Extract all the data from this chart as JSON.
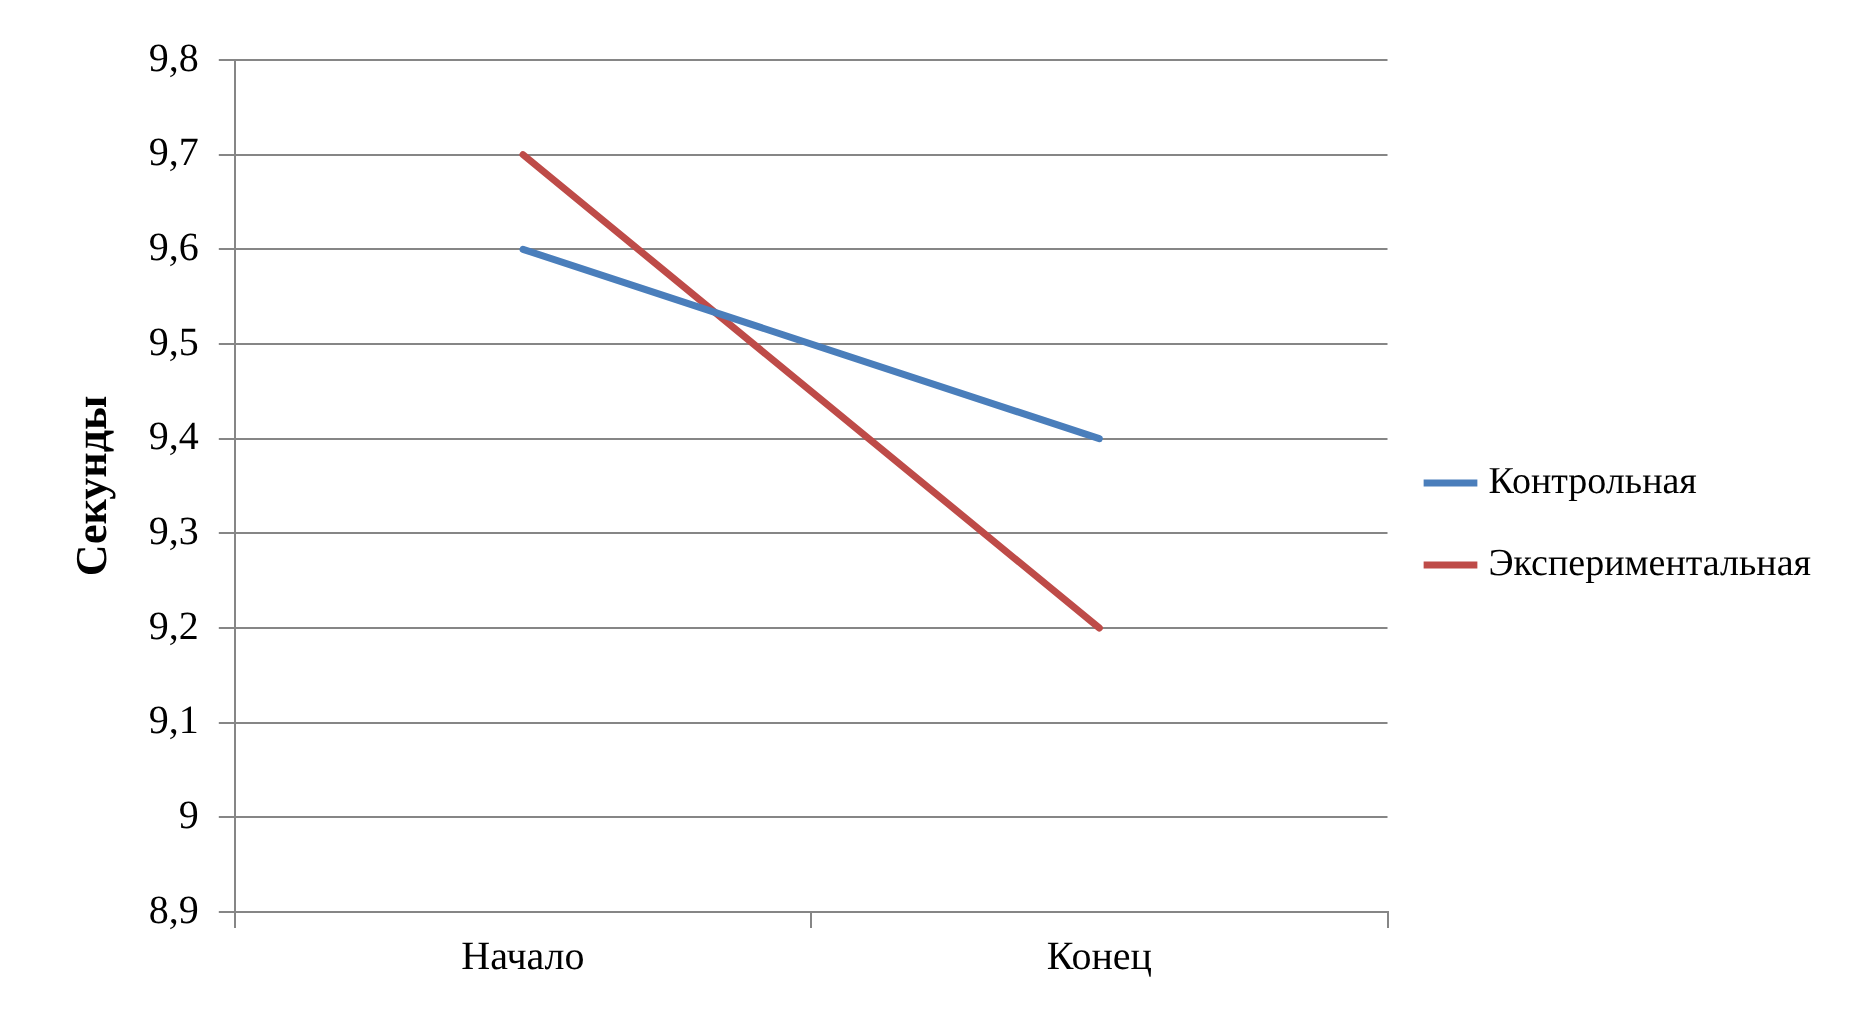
{
  "chart_data": {
    "type": "line",
    "ylabel": "Секунды",
    "categories": [
      "Начало",
      "Конец"
    ],
    "series": [
      {
        "name": "Контрольная",
        "color": "#4a7ebb",
        "values": [
          9.6,
          9.4
        ]
      },
      {
        "name": "Экспериментальная",
        "color": "#be4b48",
        "values": [
          9.7,
          9.2
        ]
      }
    ],
    "ylim": [
      8.9,
      9.8
    ],
    "yticks": [
      {
        "value": 8.9,
        "label": "8,9"
      },
      9,
      {
        "value": 9.1,
        "label": "9,1"
      },
      {
        "value": 9.2,
        "label": "9,2"
      },
      {
        "value": 9.3,
        "label": "9,3"
      },
      {
        "value": 9.4,
        "label": "9,4"
      },
      {
        "value": 9.5,
        "label": "9,5"
      },
      {
        "value": 9.6,
        "label": "9,6"
      },
      {
        "value": 9.7,
        "label": "9,7"
      },
      {
        "value": 9.8,
        "label": "9,8"
      }
    ],
    "grid": "y",
    "legend": "right",
    "marker": "none",
    "line_style": "solid"
  }
}
